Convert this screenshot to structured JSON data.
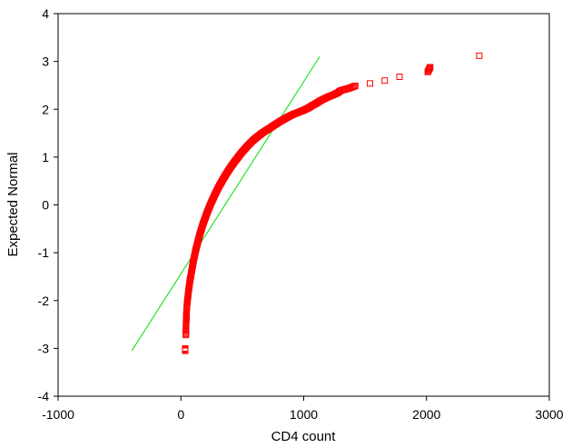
{
  "chart_data": {
    "type": "scatter",
    "title": "",
    "xlabel": "CD4 count",
    "ylabel": "Expected Normal",
    "xlim": [
      -1000,
      3000
    ],
    "ylim": [
      -4,
      4
    ],
    "xticks": [
      -1000,
      0,
      1000,
      2000,
      3000
    ],
    "yticks": [
      -4,
      -3,
      -2,
      -1,
      0,
      1,
      2,
      3,
      4
    ],
    "xtick_labels": [
      "-1000",
      "0",
      "1000",
      "2000",
      "3000"
    ],
    "ytick_labels": [
      "-4",
      "-3",
      "-2",
      "-1",
      "0",
      "1",
      "2",
      "3",
      "4"
    ],
    "grid": false,
    "legend": "none",
    "marker": "open-square",
    "series": [
      {
        "role": "observed",
        "color": "#ff0000",
        "points": [
          [
            35,
            -3.05
          ],
          [
            35,
            -3.0
          ],
          [
            40,
            -2.72
          ],
          [
            42,
            -2.6
          ],
          [
            42,
            -2.48
          ],
          [
            44,
            -2.38
          ],
          [
            45,
            -2.3
          ],
          [
            46,
            -2.22
          ],
          [
            48,
            -2.15
          ],
          [
            50,
            -2.08
          ],
          [
            52,
            -2.02
          ],
          [
            55,
            -1.96
          ],
          [
            58,
            -1.9
          ],
          [
            60,
            -1.85
          ],
          [
            62,
            -1.8
          ],
          [
            65,
            -1.75
          ],
          [
            68,
            -1.7
          ],
          [
            70,
            -1.65
          ],
          [
            73,
            -1.6
          ],
          [
            76,
            -1.55
          ],
          [
            80,
            -1.5
          ],
          [
            83,
            -1.45
          ],
          [
            86,
            -1.4
          ],
          [
            90,
            -1.35
          ],
          [
            93,
            -1.3
          ],
          [
            97,
            -1.25
          ],
          [
            100,
            -1.2
          ],
          [
            104,
            -1.15
          ],
          [
            108,
            -1.1
          ],
          [
            112,
            -1.05
          ],
          [
            116,
            -1.0
          ],
          [
            120,
            -0.95
          ],
          [
            125,
            -0.9
          ],
          [
            130,
            -0.85
          ],
          [
            135,
            -0.8
          ],
          [
            140,
            -0.75
          ],
          [
            145,
            -0.7
          ],
          [
            150,
            -0.65
          ],
          [
            156,
            -0.6
          ],
          [
            162,
            -0.55
          ],
          [
            168,
            -0.5
          ],
          [
            174,
            -0.45
          ],
          [
            180,
            -0.4
          ],
          [
            187,
            -0.35
          ],
          [
            194,
            -0.3
          ],
          [
            201,
            -0.25
          ],
          [
            208,
            -0.2
          ],
          [
            215,
            -0.15
          ],
          [
            223,
            -0.1
          ],
          [
            231,
            -0.05
          ],
          [
            239,
            0.0
          ],
          [
            247,
            0.05
          ],
          [
            256,
            0.1
          ],
          [
            265,
            0.15
          ],
          [
            274,
            0.2
          ],
          [
            283,
            0.25
          ],
          [
            293,
            0.3
          ],
          [
            303,
            0.35
          ],
          [
            313,
            0.4
          ],
          [
            324,
            0.45
          ],
          [
            335,
            0.5
          ],
          [
            346,
            0.55
          ],
          [
            358,
            0.6
          ],
          [
            370,
            0.65
          ],
          [
            382,
            0.7
          ],
          [
            395,
            0.75
          ],
          [
            408,
            0.8
          ],
          [
            422,
            0.85
          ],
          [
            436,
            0.9
          ],
          [
            451,
            0.95
          ],
          [
            466,
            1.0
          ],
          [
            481,
            1.05
          ],
          [
            497,
            1.1
          ],
          [
            514,
            1.15
          ],
          [
            531,
            1.2
          ],
          [
            549,
            1.25
          ],
          [
            568,
            1.3
          ],
          [
            588,
            1.35
          ],
          [
            610,
            1.4
          ],
          [
            635,
            1.45
          ],
          [
            660,
            1.5
          ],
          [
            690,
            1.55
          ],
          [
            720,
            1.6
          ],
          [
            750,
            1.65
          ],
          [
            780,
            1.7
          ],
          [
            810,
            1.75
          ],
          [
            845,
            1.8
          ],
          [
            880,
            1.85
          ],
          [
            920,
            1.9
          ],
          [
            960,
            1.94
          ],
          [
            1000,
            1.98
          ],
          [
            1040,
            2.03
          ],
          [
            1070,
            2.08
          ],
          [
            1100,
            2.12
          ],
          [
            1130,
            2.17
          ],
          [
            1160,
            2.21
          ],
          [
            1200,
            2.26
          ],
          [
            1240,
            2.3
          ],
          [
            1280,
            2.35
          ],
          [
            1300,
            2.39
          ],
          [
            1370,
            2.44
          ],
          [
            1420,
            2.49
          ],
          [
            1540,
            2.54
          ],
          [
            1660,
            2.6
          ],
          [
            1780,
            2.68
          ],
          [
            2010,
            2.78
          ],
          [
            2030,
            2.88
          ],
          [
            2430,
            3.12
          ]
        ]
      },
      {
        "role": "expected-normal-line",
        "color": "#00dd00",
        "points": [
          [
            -400,
            -3.05
          ],
          [
            1130,
            3.1
          ]
        ]
      }
    ]
  }
}
